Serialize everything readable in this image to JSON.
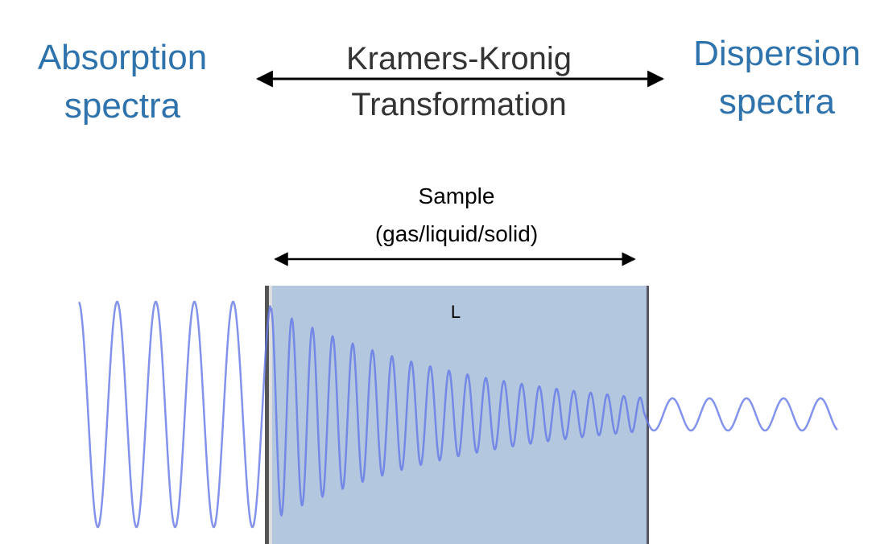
{
  "left_label": {
    "lines": [
      "Absorption",
      "spectra"
    ]
  },
  "center_label": {
    "lines": [
      "Kramers-Kronig",
      "Transformation"
    ]
  },
  "right_label": {
    "lines": [
      "Dispersion",
      "spectra"
    ]
  },
  "sample": {
    "lines": [
      "Sample",
      "(gas/liquid/solid)"
    ],
    "length_label": "L"
  }
}
